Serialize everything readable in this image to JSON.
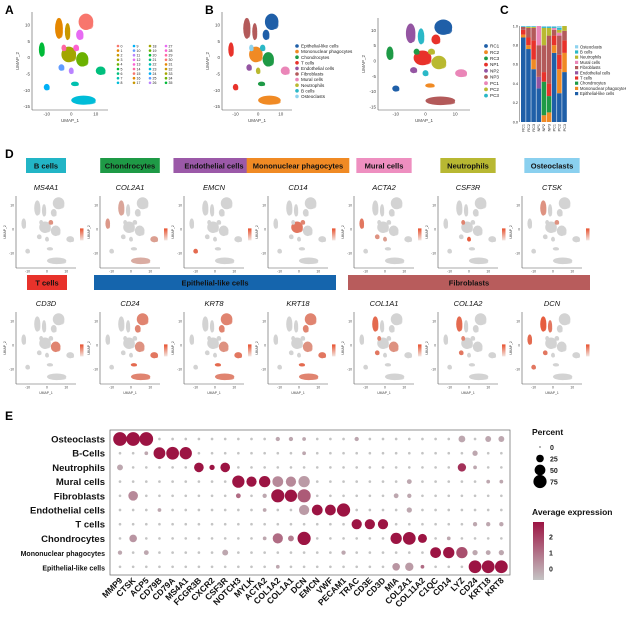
{
  "panels": {
    "A": "A",
    "B": "B",
    "C": "C",
    "D": "D",
    "E": "E"
  },
  "umap": {
    "xlabel": "UMAP_1",
    "ylabel": "UMAP_2",
    "xticks": [
      "-10",
      "0",
      "10"
    ],
    "yticks": [
      "10",
      "5",
      "0",
      "-5",
      "-10",
      "-15"
    ]
  },
  "panelA": {
    "clusters": [
      "0",
      "1",
      "2",
      "3",
      "4",
      "5",
      "6",
      "7",
      "8",
      "9",
      "10",
      "11",
      "12",
      "13",
      "14",
      "15",
      "16",
      "17",
      "18",
      "19",
      "20",
      "21",
      "22",
      "23",
      "24",
      "25",
      "26",
      "27",
      "28",
      "29",
      "30",
      "31",
      "32",
      "33",
      "34",
      "35"
    ]
  },
  "celltypes": [
    {
      "name": "Epithelial-like cells",
      "color": "#1f5fa8"
    },
    {
      "name": "Mononuclear phagocytes",
      "color": "#f08a24"
    },
    {
      "name": "Chondrocytes",
      "color": "#1e9a46"
    },
    {
      "name": "T cells",
      "color": "#e8322b"
    },
    {
      "name": "Endothelial cells",
      "color": "#9455a2"
    },
    {
      "name": "Fibroblasts",
      "color": "#b35a5a"
    },
    {
      "name": "Mural cells",
      "color": "#ea86b8"
    },
    {
      "name": "Neutrophils",
      "color": "#b9b930"
    },
    {
      "name": "B cells",
      "color": "#2bb8c7"
    },
    {
      "name": "Osteoclasts",
      "color": "#8fd3ee"
    }
  ],
  "samples": [
    {
      "name": "RC1",
      "color": "#1f5fa8"
    },
    {
      "name": "RC2",
      "color": "#f08a24"
    },
    {
      "name": "RC3",
      "color": "#1e9a46"
    },
    {
      "name": "NP1",
      "color": "#e8322b"
    },
    {
      "name": "NP2",
      "color": "#9455a2"
    },
    {
      "name": "NP3",
      "color": "#b35a5a"
    },
    {
      "name": "PC1",
      "color": "#ea86b8"
    },
    {
      "name": "PC2",
      "color": "#b9b930"
    },
    {
      "name": "PC3",
      "color": "#2bb8c7"
    }
  ],
  "panelD": {
    "row1": [
      {
        "celltype": "B cells",
        "gene": "MS4A1",
        "color": "#22b5c6"
      },
      {
        "celltype": "Chondrocytes",
        "gene": "COL2A1",
        "color": "#1e9a46"
      },
      {
        "celltype": "Endothelial cells",
        "gene": "EMCN",
        "color": "#9b59a8"
      },
      {
        "celltype": "Mononuclear phagocytes",
        "gene": "CD14",
        "color": "#f08a24"
      },
      {
        "celltype": "Mural cells",
        "gene": "ACTA2",
        "color": "#ee8fc0"
      },
      {
        "celltype": "Neutrophils",
        "gene": "CSF3R",
        "color": "#b8b832"
      },
      {
        "celltype": "Osteoclasts",
        "gene": "CTSK",
        "color": "#8ad0ef"
      }
    ],
    "row2_groups": [
      {
        "celltype": "T cells",
        "color": "#e8322b",
        "genes": [
          "CD3D"
        ]
      },
      {
        "celltype": "Epithelial-like cells",
        "color": "#1565ad",
        "genes": [
          "CD24",
          "KRT8",
          "KRT18"
        ]
      },
      {
        "celltype": "Fibroblasts",
        "color": "#b85c5c",
        "genes": [
          "COL1A1",
          "COL1A2",
          "DCN"
        ]
      }
    ],
    "feature_color": "#e8502e",
    "base_color": "#d3d3d3"
  },
  "chart_data": [
    {
      "type": "bar",
      "stacked": true,
      "title": "",
      "categories": [
        "RC1",
        "RC2",
        "RC3",
        "NP1",
        "NP2",
        "NP3",
        "PC1",
        "PC2",
        "PC3"
      ],
      "yticks": [
        "0.0",
        "0.2",
        "0.4",
        "0.6",
        "0.8",
        "1.0"
      ],
      "ylim": [
        0,
        1
      ],
      "legend": "right",
      "legend_order": [
        "Osteoclasts",
        "B cells",
        "Neutrophils",
        "Mural cells",
        "Fibroblasts",
        "Endothelial cells",
        "T cells",
        "Chondrocytes",
        "Mononuclear phagocytes",
        "Epithelial-like cells"
      ],
      "series": [
        {
          "name": "Epithelial-like cells",
          "values": [
            0.88,
            0.76,
            0.55,
            0.35,
            0.0,
            0.0,
            0.72,
            0.3,
            0.52
          ]
        },
        {
          "name": "Mononuclear phagocytes",
          "values": [
            0.03,
            0.04,
            0.1,
            0.0,
            0.07,
            0.1,
            0.08,
            0.25,
            0.2
          ]
        },
        {
          "name": "Chondrocytes",
          "values": [
            0.0,
            0.0,
            0.0,
            0.0,
            0.35,
            0.17,
            0.0,
            0.0,
            0.0
          ]
        },
        {
          "name": "T cells",
          "values": [
            0.05,
            0.08,
            0.2,
            0.0,
            0.1,
            0.13,
            0.1,
            0.15,
            0.13
          ]
        },
        {
          "name": "Endothelial cells",
          "values": [
            0.0,
            0.0,
            0.0,
            0.12,
            0.0,
            0.0,
            0.0,
            0.0,
            0.0
          ]
        },
        {
          "name": "Fibroblasts",
          "values": [
            0.03,
            0.1,
            0.13,
            0.33,
            0.28,
            0.5,
            0.06,
            0.2,
            0.1
          ]
        },
        {
          "name": "Mural cells",
          "values": [
            0.0,
            0.0,
            0.0,
            0.2,
            0.0,
            0.0,
            0.02,
            0.03,
            0.0
          ]
        },
        {
          "name": "Neutrophils",
          "values": [
            0.0,
            0.01,
            0.01,
            0.0,
            0.18,
            0.08,
            0.0,
            0.03,
            0.05
          ]
        },
        {
          "name": "B cells",
          "values": [
            0.005,
            0.005,
            0.005,
            0.0,
            0.01,
            0.01,
            0.01,
            0.02,
            0.0
          ]
        },
        {
          "name": "Osteoclasts",
          "values": [
            0.005,
            0.005,
            0.005,
            0.0,
            0.01,
            0.01,
            0.01,
            0.02,
            0.0
          ]
        }
      ]
    },
    {
      "type": "scatter",
      "subtype": "dotplot",
      "genes": [
        "MMP9",
        "CTSK",
        "ACP5",
        "CD79B",
        "CD79A",
        "MS4A1",
        "FCGR3B",
        "CXCR2",
        "CSF3R",
        "NOTCH3",
        "MYLK",
        "ACTA2",
        "COL1A2",
        "COL1A1",
        "DCN",
        "EMCN",
        "VWF",
        "PECAM1",
        "TRAC",
        "CD3E",
        "CD3D",
        "MIA",
        "COL2A1",
        "COL11A2",
        "C1QC",
        "CD14",
        "LYZ",
        "CD24",
        "KRT18",
        "KRT8"
      ],
      "rows": [
        "Osteoclasts",
        "B-Cells",
        "Neutrophils",
        "Mural cells",
        "Fibroblasts",
        "Endothelial cells",
        "T cells",
        "Chondrocytes",
        "Mononuclear phagocytes",
        "Epithelial-like cells"
      ],
      "default_point": [
        3,
        -0.5
      ],
      "points": {
        "Osteoclasts": {
          "MMP9": [
            80,
            2.5
          ],
          "CTSK": [
            80,
            2.5
          ],
          "ACP5": [
            80,
            2.5
          ],
          "COL1A2": [
            8,
            0
          ],
          "COL1A1": [
            8,
            0
          ],
          "DCN": [
            6,
            0
          ],
          "TRAC": [
            8,
            0
          ],
          "LYZ": [
            20,
            0
          ],
          "KRT18": [
            15,
            0
          ],
          "KRT8": [
            15,
            0
          ]
        },
        "B-Cells": {
          "ACP5": [
            6,
            0
          ],
          "CD79B": [
            60,
            2.5
          ],
          "CD79A": [
            70,
            2.5
          ],
          "MS4A1": [
            65,
            2.5
          ],
          "DCN": [
            6,
            0
          ],
          "CD24": [
            12,
            0
          ]
        },
        "Neutrophils": {
          "MMP9": [
            15,
            0
          ],
          "FCGR3B": [
            40,
            2.5
          ],
          "CXCR2": [
            12,
            2.5
          ],
          "CSF3R": [
            40,
            2.5
          ],
          "LYZ": [
            30,
            2
          ],
          "CD24": [
            6,
            0
          ]
        },
        "Mural cells": {
          "NOTCH3": [
            65,
            2.5
          ],
          "MYLK": [
            45,
            2.5
          ],
          "ACTA2": [
            55,
            2.5
          ],
          "COL1A2": [
            50,
            0.5
          ],
          "COL1A1": [
            45,
            0.5
          ],
          "DCN": [
            55,
            0.2
          ],
          "COL2A1": [
            10,
            0
          ],
          "KRT18": [
            6,
            0
          ],
          "KRT8": [
            6,
            0
          ]
        },
        "Fibroblasts": {
          "CTSK": [
            40,
            0.5
          ],
          "NOTCH3": [
            10,
            1
          ],
          "ACTA2": [
            8,
            0
          ],
          "COL1A2": [
            75,
            2.5
          ],
          "COL1A1": [
            65,
            2.5
          ],
          "DCN": [
            75,
            1.3
          ],
          "MIA": [
            10,
            0
          ],
          "COL2A1": [
            8,
            0
          ]
        },
        "Endothelial cells": {
          "CD79B": [
            6,
            0
          ],
          "ACTA2": [
            6,
            0
          ],
          "DCN": [
            45,
            0.2
          ],
          "EMCN": [
            50,
            2.5
          ],
          "VWF": [
            50,
            2.5
          ],
          "PECAM1": [
            75,
            2.5
          ],
          "COL2A1": [
            12,
            0
          ]
        },
        "T cells": {
          "TRAC": [
            45,
            2.5
          ],
          "CD3E": [
            45,
            2.5
          ],
          "CD3D": [
            45,
            2.5
          ],
          "CD24": [
            8,
            0
          ],
          "KRT18": [
            8,
            0
          ],
          "KRT8": [
            8,
            0
          ]
        },
        "Chondrocytes": {
          "CTSK": [
            25,
            0.3
          ],
          "ACTA2": [
            6,
            0
          ],
          "COL1A2": [
            45,
            1
          ],
          "COL1A1": [
            15,
            0.7
          ],
          "DCN": [
            75,
            2.5
          ],
          "MIA": [
            55,
            2.5
          ],
          "COL2A1": [
            70,
            2.5
          ],
          "COL11A2": [
            35,
            2.5
          ],
          "CD14": [
            6,
            0
          ]
        },
        "Mononuclear phagocytes": {
          "MMP9": [
            8,
            0
          ],
          "ACP5": [
            10,
            0
          ],
          "CSF3R": [
            15,
            0
          ],
          "PECAM1": [
            8,
            0
          ],
          "C1QC": [
            50,
            2.5
          ],
          "CD14": [
            55,
            2.5
          ],
          "LYZ": [
            55,
            1.5
          ],
          "CD24": [
            12,
            0
          ],
          "KRT18": [
            10,
            0
          ],
          "KRT8": [
            12,
            0
          ]
        },
        "Epithelial-like cells": {
          "COL1A2": [
            6,
            0
          ],
          "MIA": [
            25,
            0.3
          ],
          "COL2A1": [
            30,
            0.2
          ],
          "COL11A2": [
            6,
            1
          ],
          "CD24": [
            70,
            2.5
          ],
          "KRT18": [
            70,
            2.5
          ],
          "KRT8": [
            70,
            2.5
          ]
        }
      },
      "size_legend": {
        "title": "Percent",
        "values": [
          "0",
          "25",
          "50",
          "75"
        ]
      },
      "color_legend": {
        "title": "Average expression",
        "ticks": [
          "2",
          "1",
          "0"
        ],
        "low": "#c4c4c4",
        "high": "#9c1443",
        "range": [
          -0.5,
          2.5
        ]
      }
    }
  ]
}
